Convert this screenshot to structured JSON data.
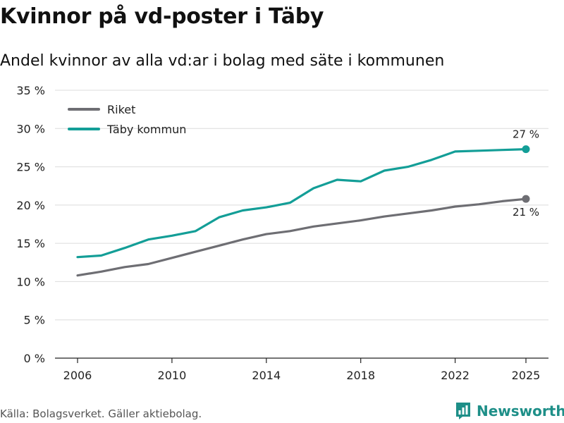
{
  "header": {
    "title": "Kvinnor på vd-poster i Täby",
    "subtitle": "Andel kvinnor av alla vd:ar i bolag med säte i kommunen"
  },
  "footer": {
    "source": "Källa: Bolagsverket. Gäller aktiebolag.",
    "brand": "Newsworthy",
    "brand_icon": "newsworthy-logo-icon",
    "brand_color": "#1e8f88"
  },
  "chart_data": {
    "type": "line",
    "title": "Kvinnor på vd-poster i Täby",
    "subtitle": "Andel kvinnor av alla vd:ar i bolag med säte i kommunen",
    "xlabel": "",
    "ylabel": "",
    "x": [
      2006,
      2007,
      2008,
      2009,
      2010,
      2011,
      2012,
      2013,
      2014,
      2015,
      2016,
      2017,
      2018,
      2019,
      2020,
      2021,
      2022,
      2023,
      2024,
      2025
    ],
    "x_ticks": [
      2006,
      2010,
      2014,
      2018,
      2022,
      2025
    ],
    "x_tick_labels": [
      "2006",
      "2010",
      "2014",
      "2018",
      "2022",
      "2025"
    ],
    "y_ticks": [
      0,
      5,
      10,
      15,
      20,
      25,
      30,
      35
    ],
    "y_tick_labels": [
      "0 %",
      "5 %",
      "10 %",
      "15 %",
      "20 %",
      "25 %",
      "30 %",
      "35 %"
    ],
    "xlim": [
      2006,
      2025
    ],
    "ylim": [
      0,
      35
    ],
    "grid": "horizontal",
    "legend_position": "top-left",
    "series": [
      {
        "name": "Riket",
        "color": "#6e6e73",
        "values": [
          10.8,
          11.3,
          11.9,
          12.3,
          13.1,
          13.9,
          14.7,
          15.5,
          16.2,
          16.6,
          17.2,
          17.6,
          18.0,
          18.5,
          18.9,
          19.3,
          19.8,
          20.1,
          20.5,
          20.8
        ],
        "end_label": "21 %",
        "end_label_position": "below"
      },
      {
        "name": "Täby kommun",
        "color": "#139e97",
        "values": [
          13.2,
          13.4,
          14.4,
          15.5,
          16.0,
          16.6,
          18.4,
          19.3,
          19.7,
          20.3,
          22.2,
          23.3,
          23.1,
          24.5,
          25.0,
          25.9,
          27.0,
          27.1,
          27.2,
          27.3
        ],
        "end_label": "27 %",
        "end_label_position": "above"
      }
    ]
  }
}
